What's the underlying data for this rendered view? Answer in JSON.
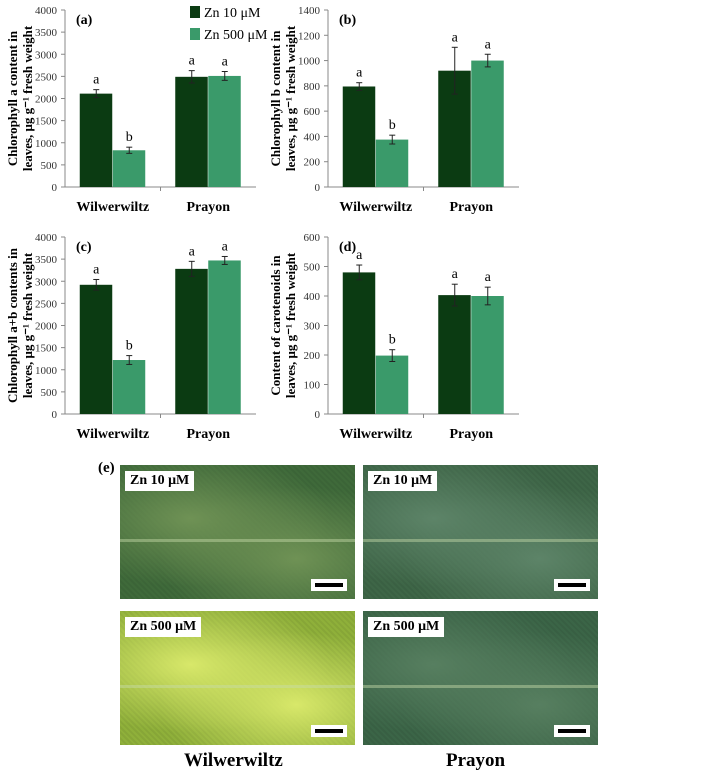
{
  "legend": [
    {
      "label": "Zn 10 μM",
      "color": "#0b3b12"
    },
    {
      "label": "Zn 500 μM",
      "color": "#3a9a6a"
    }
  ],
  "chart_data": [
    {
      "type": "bar",
      "panel": "(a)",
      "categories": [
        "Wilwerwiltz",
        "Prayon"
      ],
      "ylabel": [
        "Chlorophyll a content in",
        "leaves, μg g⁻¹ fresh weight"
      ],
      "ylim": [
        0,
        4000
      ],
      "yticks": [
        0,
        500,
        1000,
        1500,
        2000,
        2500,
        3000,
        3500,
        4000
      ],
      "series": [
        {
          "name": "Zn 10 μM",
          "values": [
            2110,
            2490
          ],
          "errors": [
            90,
            140
          ],
          "letters": [
            "a",
            "a"
          ]
        },
        {
          "name": "Zn 500 μM",
          "values": [
            830,
            2510
          ],
          "errors": [
            70,
            100
          ],
          "letters": [
            "b",
            "a"
          ]
        }
      ]
    },
    {
      "type": "bar",
      "panel": "(b)",
      "categories": [
        "Wilwerwiltz",
        "Prayon"
      ],
      "ylabel": [
        "Chlorophyll b content in",
        "leaves, μg g⁻¹ fresh weight"
      ],
      "ylim": [
        0,
        1400
      ],
      "yticks": [
        0,
        200,
        400,
        600,
        800,
        1000,
        1200,
        1400
      ],
      "series": [
        {
          "name": "Zn 10 μM",
          "values": [
            795,
            920
          ],
          "errors": [
            30,
            185
          ],
          "letters": [
            "a",
            "a"
          ]
        },
        {
          "name": "Zn 500 μM",
          "values": [
            375,
            1000
          ],
          "errors": [
            35,
            50
          ],
          "letters": [
            "b",
            "a"
          ]
        }
      ]
    },
    {
      "type": "bar",
      "panel": "(c)",
      "categories": [
        "Wilwerwiltz",
        "Prayon"
      ],
      "ylabel": [
        "Chlorophyll a+b contents in",
        "leaves, μg g⁻¹ fresh weight"
      ],
      "ylim": [
        0,
        4000
      ],
      "yticks": [
        0,
        500,
        1000,
        1500,
        2000,
        2500,
        3000,
        3500,
        4000
      ],
      "series": [
        {
          "name": "Zn 10 μM",
          "values": [
            2920,
            3280
          ],
          "errors": [
            120,
            170
          ],
          "letters": [
            "a",
            "a"
          ]
        },
        {
          "name": "Zn 500 μM",
          "values": [
            1220,
            3470
          ],
          "errors": [
            100,
            90
          ],
          "letters": [
            "b",
            "a"
          ]
        }
      ]
    },
    {
      "type": "bar",
      "panel": "(d)",
      "categories": [
        "Wilwerwiltz",
        "Prayon"
      ],
      "ylabel": [
        "Content of carotenoids in",
        "leaves, μg g⁻¹ fresh weight"
      ],
      "ylim": [
        0,
        600
      ],
      "yticks": [
        0,
        100,
        200,
        300,
        400,
        500,
        600
      ],
      "series": [
        {
          "name": "Zn 10 μM",
          "values": [
            480,
            403
          ],
          "errors": [
            25,
            37
          ],
          "letters": [
            "a",
            "a"
          ]
        },
        {
          "name": "Zn 500 μM",
          "values": [
            198,
            400
          ],
          "errors": [
            20,
            30
          ],
          "letters": [
            "b",
            "a"
          ]
        }
      ]
    }
  ],
  "panel_e": {
    "label": "(e)",
    "photos": [
      {
        "label": "Zn 10 μM",
        "base": "#3f6a3a",
        "hi": "#6f9255"
      },
      {
        "label": "Zn 10 μM",
        "base": "#3e6647",
        "hi": "#5d8468"
      },
      {
        "label": "Zn 500 μM",
        "base": "#8fb03a",
        "hi": "#d8e86a"
      },
      {
        "label": "Zn 500 μM",
        "base": "#3b6547",
        "hi": "#577f60"
      }
    ],
    "captions": [
      "Wilwerwiltz",
      "Prayon"
    ]
  }
}
